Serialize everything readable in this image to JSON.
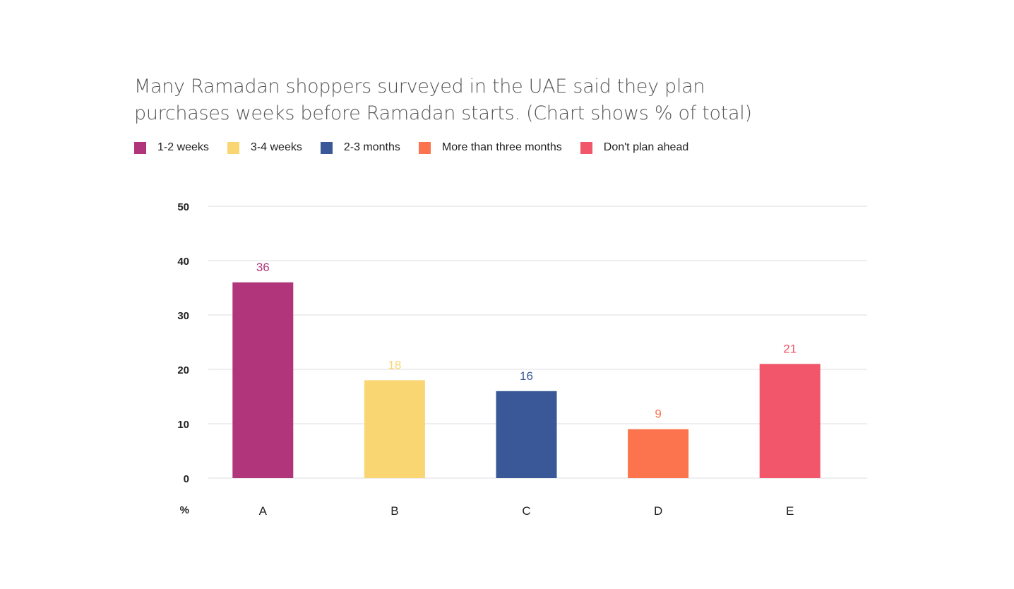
{
  "title_line1": "Many Ramadan shoppers surveyed in the UAE said they plan",
  "title_line2": "purchases weeks before Ramadan starts. (Chart shows % of total)",
  "legend": [
    {
      "label": "1-2 weeks",
      "color": "#b0357a"
    },
    {
      "label": "3-4 weeks",
      "color": "#f9d672"
    },
    {
      "label": "2-3 months",
      "color": "#3a5897"
    },
    {
      "label": "More than three months",
      "color": "#fc744d"
    },
    {
      "label": "Don't plan ahead",
      "color": "#f1566a"
    }
  ],
  "chart_data": {
    "type": "bar",
    "categories": [
      "A",
      "B",
      "C",
      "D",
      "E"
    ],
    "values": [
      36,
      18,
      16,
      9,
      21
    ],
    "colors": [
      "#b0357a",
      "#f9d672",
      "#3a5897",
      "#fc744d",
      "#f1566a"
    ],
    "series_labels": [
      "1-2 weeks",
      "3-4 weeks",
      "2-3 months",
      "More than three months",
      "Don't plan ahead"
    ],
    "title": "Many Ramadan shoppers surveyed in the UAE said they plan purchases weeks before Ramadan starts. (Chart shows % of total)",
    "xlabel": "",
    "ylabel": "%",
    "ylim": [
      0,
      50
    ],
    "yticks": [
      0,
      10,
      20,
      30,
      40,
      50
    ],
    "grid": true,
    "legend_position": "top-left"
  }
}
